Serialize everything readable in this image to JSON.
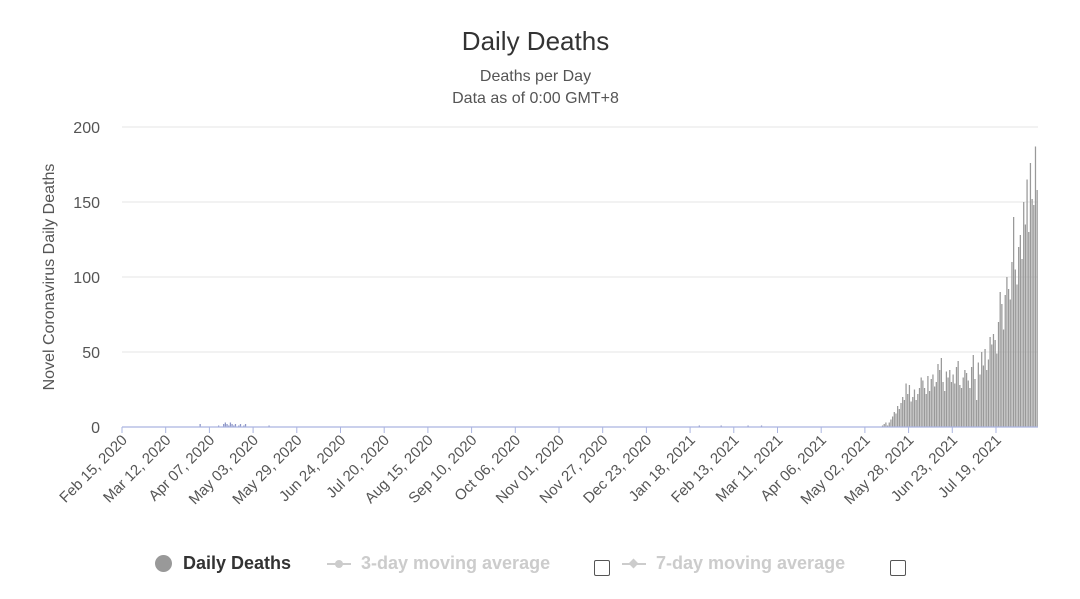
{
  "chart_data": {
    "type": "bar",
    "title": "Daily Deaths",
    "subtitle": [
      "Deaths per Day",
      "Data as of 0:00 GMT+8"
    ],
    "ylabel": "Novel Coronavirus Daily Deaths",
    "xlabel": "",
    "ylim": [
      0,
      200
    ],
    "yticks": [
      0,
      50,
      100,
      150,
      200
    ],
    "grid": true,
    "x_start": "2020-02-15",
    "xticks": [
      "Feb 15, 2020",
      "Mar 12, 2020",
      "Apr 07, 2020",
      "May 03, 2020",
      "May 29, 2020",
      "Jun 24, 2020",
      "Jul 20, 2020",
      "Aug 15, 2020",
      "Sep 10, 2020",
      "Oct 06, 2020",
      "Nov 01, 2020",
      "Nov 27, 2020",
      "Dec 23, 2020",
      "Jan 18, 2021",
      "Feb 13, 2021",
      "Mar 11, 2021",
      "Apr 06, 2021",
      "May 02, 2021",
      "May 28, 2021",
      "Jun 23, 2021",
      "Jul 19, 2021"
    ],
    "series": [
      {
        "name": "Daily Deaths",
        "color": "#999999",
        "values": [
          0,
          0,
          0,
          0,
          0,
          0,
          0,
          0,
          0,
          0,
          0,
          0,
          0,
          0,
          0,
          0,
          0,
          0,
          0,
          0,
          0,
          0,
          0,
          0,
          0,
          0,
          0,
          0,
          0,
          0,
          0,
          0,
          0,
          0,
          0,
          0,
          0,
          0,
          0,
          0,
          0,
          0,
          0,
          0,
          0,
          0,
          2,
          0,
          0,
          0,
          0,
          0,
          0,
          0,
          0,
          0,
          0,
          1,
          0,
          0,
          2,
          3,
          2,
          1,
          3,
          2,
          1,
          2,
          0,
          1,
          2,
          0,
          1,
          2,
          0,
          0,
          0,
          0,
          0,
          0,
          0,
          0,
          0,
          0,
          0,
          0,
          0,
          1,
          0,
          0,
          0,
          0,
          0,
          0,
          0,
          0,
          0,
          0,
          0,
          0,
          0,
          0,
          0,
          0,
          0,
          0,
          0,
          0,
          0,
          0,
          0,
          0,
          0,
          0,
          0,
          0,
          0,
          0,
          0,
          0,
          0,
          0,
          0,
          0,
          0,
          0,
          0,
          0,
          0,
          0,
          0,
          0,
          0,
          0,
          0,
          0,
          0,
          0,
          0,
          0,
          0,
          0,
          0,
          0,
          0,
          0,
          0,
          0,
          0,
          0,
          0,
          0,
          0,
          0,
          0,
          0,
          0,
          0,
          0,
          0,
          0,
          0,
          0,
          0,
          0,
          0,
          0,
          0,
          0,
          0,
          0,
          0,
          0,
          0,
          0,
          0,
          0,
          0,
          0,
          0,
          0,
          0,
          0,
          0,
          0,
          0,
          0,
          0,
          0,
          0,
          0,
          0,
          0,
          0,
          0,
          0,
          0,
          0,
          0,
          0,
          0,
          0,
          0,
          0,
          0,
          0,
          0,
          0,
          0,
          0,
          0,
          0,
          0,
          0,
          0,
          0,
          0,
          0,
          0,
          0,
          0,
          0,
          0,
          0,
          0,
          0,
          0,
          0,
          0,
          0,
          0,
          0,
          0,
          0,
          0,
          0,
          0,
          0,
          0,
          0,
          0,
          0,
          0,
          0,
          0,
          0,
          0,
          0,
          0,
          0,
          0,
          0,
          0,
          0,
          0,
          0,
          0,
          0,
          0,
          0,
          0,
          0,
          0,
          0,
          0,
          0,
          0,
          0,
          0,
          0,
          0,
          0,
          0,
          0,
          0,
          0,
          0,
          0,
          0,
          0,
          0,
          0,
          0,
          0,
          0,
          0,
          0,
          0,
          0,
          0,
          0,
          0,
          0,
          0,
          0,
          0,
          0,
          0,
          0,
          0,
          0,
          0,
          0,
          0,
          0,
          0,
          0,
          0,
          0,
          0,
          0,
          0,
          0,
          0,
          0,
          0,
          0,
          0,
          0,
          0,
          0,
          0,
          0,
          0,
          0,
          0,
          0,
          0,
          0,
          0,
          0,
          0,
          0,
          0,
          0,
          0,
          0,
          0,
          0,
          0,
          0,
          0,
          0,
          1,
          0,
          0,
          0,
          0,
          0,
          0,
          0,
          0,
          0,
          0,
          0,
          0,
          1,
          0,
          0,
          0,
          0,
          0,
          0,
          0,
          0,
          0,
          0,
          0,
          0,
          0,
          0,
          0,
          1,
          0,
          0,
          0,
          0,
          0,
          0,
          0,
          1,
          0,
          0,
          0,
          0,
          0,
          0,
          0,
          0,
          0,
          0,
          0,
          0,
          0,
          0,
          0,
          0,
          0,
          0,
          0,
          0,
          0,
          0,
          0,
          0,
          0,
          0,
          0,
          0,
          0,
          0,
          0,
          0,
          0,
          0,
          0,
          0,
          0,
          0,
          0,
          0,
          0,
          0,
          0,
          0,
          0,
          0,
          0,
          0,
          0,
          0,
          0,
          0,
          0,
          0,
          0,
          0,
          0,
          0,
          0,
          0,
          0,
          0,
          0,
          0,
          0,
          0,
          0,
          0,
          0,
          0,
          0,
          1,
          2,
          3,
          1,
          3,
          5,
          7,
          10,
          9,
          14,
          12,
          16,
          20,
          18,
          29,
          22,
          28,
          17,
          20,
          25,
          18,
          22,
          26,
          33,
          31,
          26,
          22,
          34,
          24,
          32,
          35,
          27,
          30,
          42,
          38,
          46,
          30,
          24,
          37,
          33,
          38,
          30,
          35,
          29,
          40,
          44,
          28,
          26,
          33,
          38,
          36,
          31,
          26,
          40,
          48,
          32,
          18,
          43,
          35,
          50,
          41,
          52,
          38,
          45,
          60,
          55,
          62,
          58,
          49,
          70,
          90,
          82,
          65,
          88,
          100,
          92,
          85,
          110,
          140,
          105,
          95,
          120,
          128,
          112,
          150,
          135,
          165,
          130,
          176,
          152,
          148,
          187,
          158
        ]
      },
      {
        "name": "3-day moving average",
        "visible": false
      },
      {
        "name": "7-day moving average",
        "visible": false
      }
    ]
  },
  "legend": {
    "items": [
      {
        "label": "Daily Deaths",
        "active": true
      },
      {
        "label": "3-day moving average",
        "active": false
      },
      {
        "label": "7-day moving average",
        "active": false
      }
    ]
  }
}
